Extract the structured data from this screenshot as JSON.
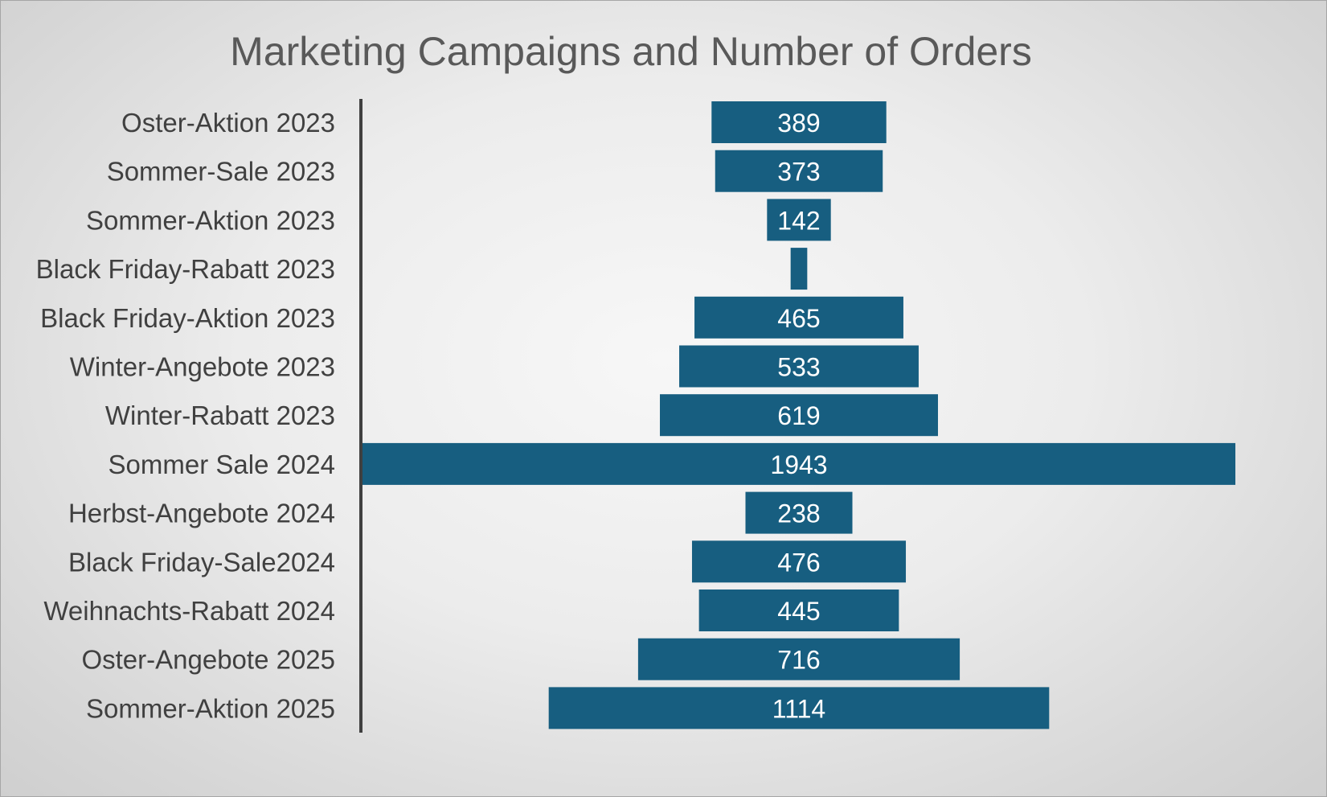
{
  "chart_data": {
    "type": "bar",
    "subtype": "funnel",
    "title": "Marketing Campaigns and Number of Orders",
    "categories": [
      "Oster-Aktion 2023",
      "Sommer-Sale 2023",
      "Sommer-Aktion 2023",
      "Black Friday-Rabatt 2023",
      "Black Friday-Aktion 2023",
      "Winter-Angebote 2023",
      "Winter-Rabatt 2023",
      "Sommer Sale 2024",
      "Herbst-Angebote 2024",
      "Black Friday-Sale2024",
      "Weihnachts-Rabatt 2024",
      "Oster-Angebote 2025",
      "Sommer-Aktion 2025"
    ],
    "values": [
      389,
      373,
      142,
      37,
      465,
      533,
      619,
      1943,
      238,
      476,
      445,
      716,
      1114
    ],
    "data_labels": [
      "389",
      "373",
      "142",
      "",
      "465",
      "533",
      "619",
      "1943",
      "238",
      "476",
      "445",
      "716",
      "1114"
    ],
    "xlabel": "",
    "ylabel": "",
    "grid": false,
    "legend": "none",
    "bar_color": "#175e80",
    "label_color": "#ffffff",
    "axis_color": "#404040"
  }
}
